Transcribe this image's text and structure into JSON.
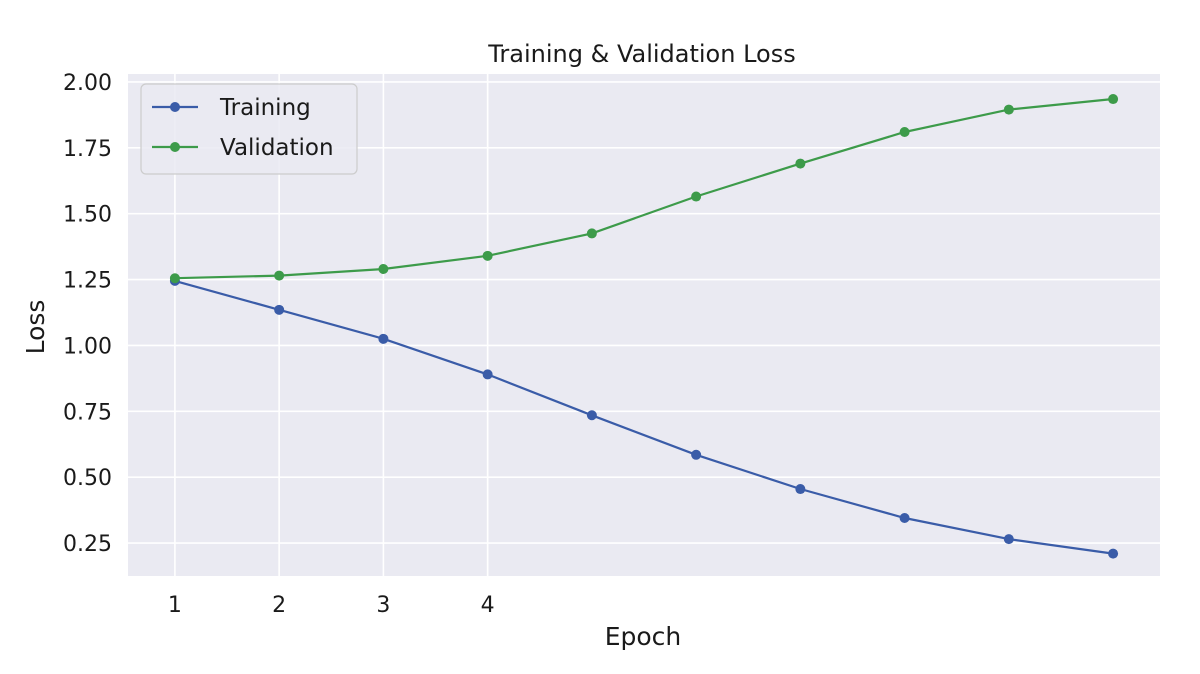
{
  "chart_data": {
    "type": "line",
    "title": "Training & Validation Loss",
    "xlabel": "Epoch",
    "ylabel": "Loss",
    "x": [
      1,
      2,
      3,
      4,
      5,
      6,
      7,
      8,
      9,
      10
    ],
    "x_tick_labels": [
      "1",
      "2",
      "3",
      "4"
    ],
    "y_ticks": [
      0.25,
      0.5,
      0.75,
      1.0,
      1.25,
      1.5,
      1.75,
      2.0
    ],
    "y_tick_labels": [
      "0.25",
      "0.50",
      "0.75",
      "1.00",
      "1.25",
      "1.50",
      "1.75",
      "2.00"
    ],
    "xlim": [
      0.55,
      10.45
    ],
    "ylim": [
      0.125,
      2.03
    ],
    "grid": true,
    "legend_position": "top-left",
    "series": [
      {
        "name": "Training",
        "color": "#3a5ca8",
        "values": [
          1.245,
          1.135,
          1.025,
          0.89,
          0.735,
          0.585,
          0.455,
          0.345,
          0.265,
          0.21
        ]
      },
      {
        "name": "Validation",
        "color": "#3d9b4a",
        "values": [
          1.255,
          1.265,
          1.29,
          1.34,
          1.425,
          1.565,
          1.69,
          1.81,
          1.895,
          1.935
        ]
      }
    ]
  }
}
